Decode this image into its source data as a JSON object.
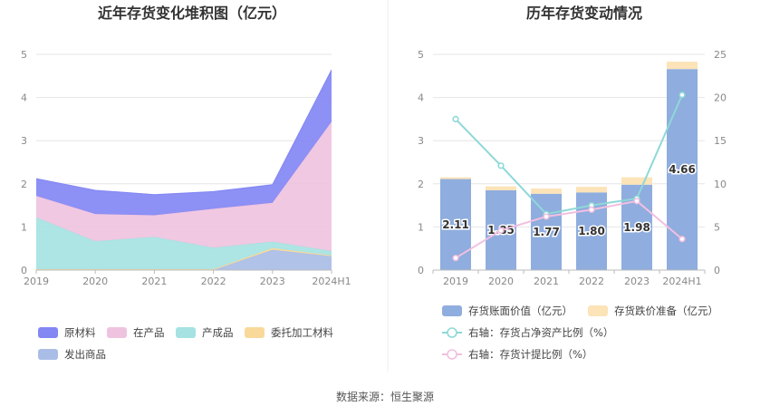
{
  "footer": {
    "source": "数据来源：恒生聚源"
  },
  "chart_data": [
    {
      "type": "area",
      "stacked": true,
      "title": "近年存货变化堆积图（亿元）",
      "x": [
        "2019",
        "2020",
        "2021",
        "2022",
        "2023",
        "2024H1"
      ],
      "ylim": [
        0,
        5
      ],
      "yticks": [
        "0",
        "1",
        "2",
        "3",
        "4",
        "5"
      ],
      "legend_position": "bottom",
      "series": [
        {
          "name": "原材料",
          "color": "#8387f3",
          "values": [
            0.4,
            0.55,
            0.48,
            0.4,
            0.42,
            1.2
          ]
        },
        {
          "name": "在产品",
          "color": "#efc3e0",
          "values": [
            0.5,
            0.63,
            0.5,
            0.9,
            0.9,
            3.0
          ]
        },
        {
          "name": "产成品",
          "color": "#a6e2e2",
          "values": [
            1.2,
            0.65,
            0.75,
            0.5,
            0.15,
            0.1
          ]
        },
        {
          "name": "委托加工材料",
          "color": "#f8d99a",
          "values": [
            0.02,
            0.02,
            0.02,
            0.02,
            0.04,
            0.02
          ]
        },
        {
          "name": "发出商品",
          "color": "#a9bde6",
          "values": [
            0.0,
            0.0,
            0.0,
            0.0,
            0.47,
            0.32
          ]
        }
      ]
    },
    {
      "type": "bar",
      "title": "历年存货变动情况",
      "categories": [
        "2019",
        "2020",
        "2021",
        "2022",
        "2023",
        "2024H1"
      ],
      "ylim_left": [
        0,
        5
      ],
      "yticks_left": [
        "0",
        "1",
        "2",
        "3",
        "4",
        "5"
      ],
      "ylim_right": [
        0,
        25
      ],
      "yticks_right": [
        "0",
        "5",
        "10",
        "15",
        "20",
        "25"
      ],
      "legend_position": "bottom",
      "bars": [
        {
          "name": "存货账面价值（亿元）",
          "color": "#8fadde",
          "values": [
            2.11,
            1.85,
            1.77,
            1.8,
            1.98,
            4.66
          ],
          "labels": [
            "2.11",
            "1.85",
            "1.77",
            "1.80",
            "1.98",
            "4.66"
          ]
        },
        {
          "name": "存货跌价准备（亿元）",
          "color": "#fce3b8",
          "values": [
            0.04,
            0.09,
            0.12,
            0.13,
            0.17,
            0.17
          ]
        }
      ],
      "lines": [
        {
          "name": "右轴：存货占净资产比例（%）",
          "color": "#8ed8d8",
          "values": [
            17.5,
            12.1,
            6.5,
            7.5,
            8.3,
            20.3
          ]
        },
        {
          "name": "右轴：存货计提比例（%）",
          "color": "#f2bfe0",
          "values": [
            1.4,
            4.6,
            6.2,
            7.0,
            8.0,
            3.6
          ]
        }
      ]
    }
  ]
}
